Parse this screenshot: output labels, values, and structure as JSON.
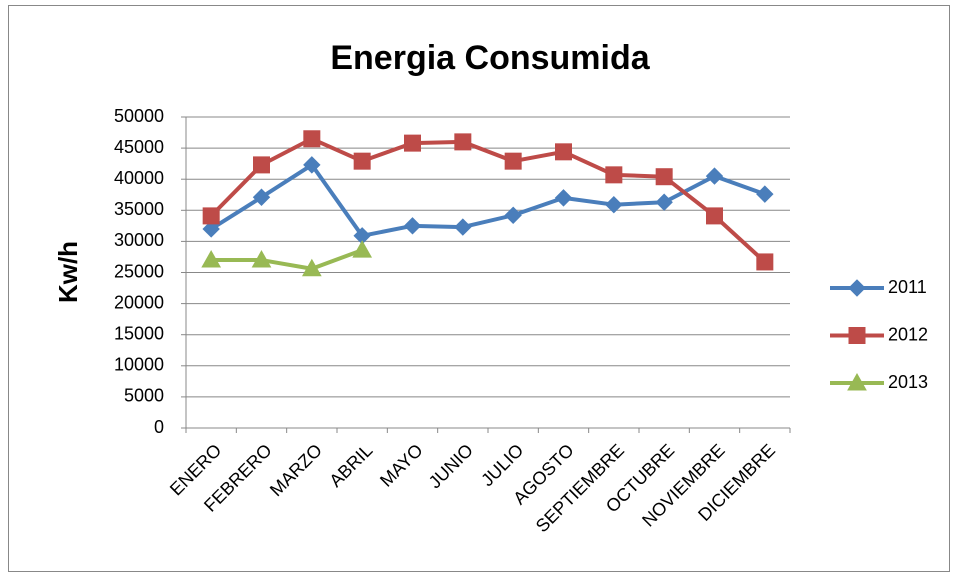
{
  "chart_data": {
    "type": "line",
    "title": "Energia Consumida",
    "y_label": "Kw/h",
    "categories": [
      "ENERO",
      "FEBRERO",
      "MARZO",
      "ABRIL",
      "MAYO",
      "JUNIO",
      "JULIO",
      "AGOSTO",
      "SEPTIEMBRE",
      "OCTUBRE",
      "NOVIEMBRE",
      "DICIEMBRE"
    ],
    "series": [
      {
        "name": "2011",
        "color": "#4a7ebb",
        "marker": "diamond",
        "values": [
          32000,
          37100,
          42300,
          30900,
          32500,
          32300,
          34200,
          37000,
          35900,
          36300,
          40500,
          37600
        ]
      },
      {
        "name": "2012",
        "color": "#be4b48",
        "marker": "square",
        "values": [
          34100,
          42300,
          46500,
          42900,
          45800,
          46000,
          42900,
          44400,
          40700,
          40400,
          34100,
          26700
        ]
      },
      {
        "name": "2013",
        "color": "#98b954",
        "marker": "triangle",
        "values": [
          27000,
          27000,
          25600,
          28600,
          null,
          null,
          null,
          null,
          null,
          null,
          null,
          null
        ]
      }
    ],
    "ylim": [
      0,
      50000
    ],
    "yticks": [
      0,
      5000,
      10000,
      15000,
      20000,
      25000,
      30000,
      35000,
      40000,
      45000,
      50000
    ],
    "grid": true,
    "legend": "right"
  }
}
